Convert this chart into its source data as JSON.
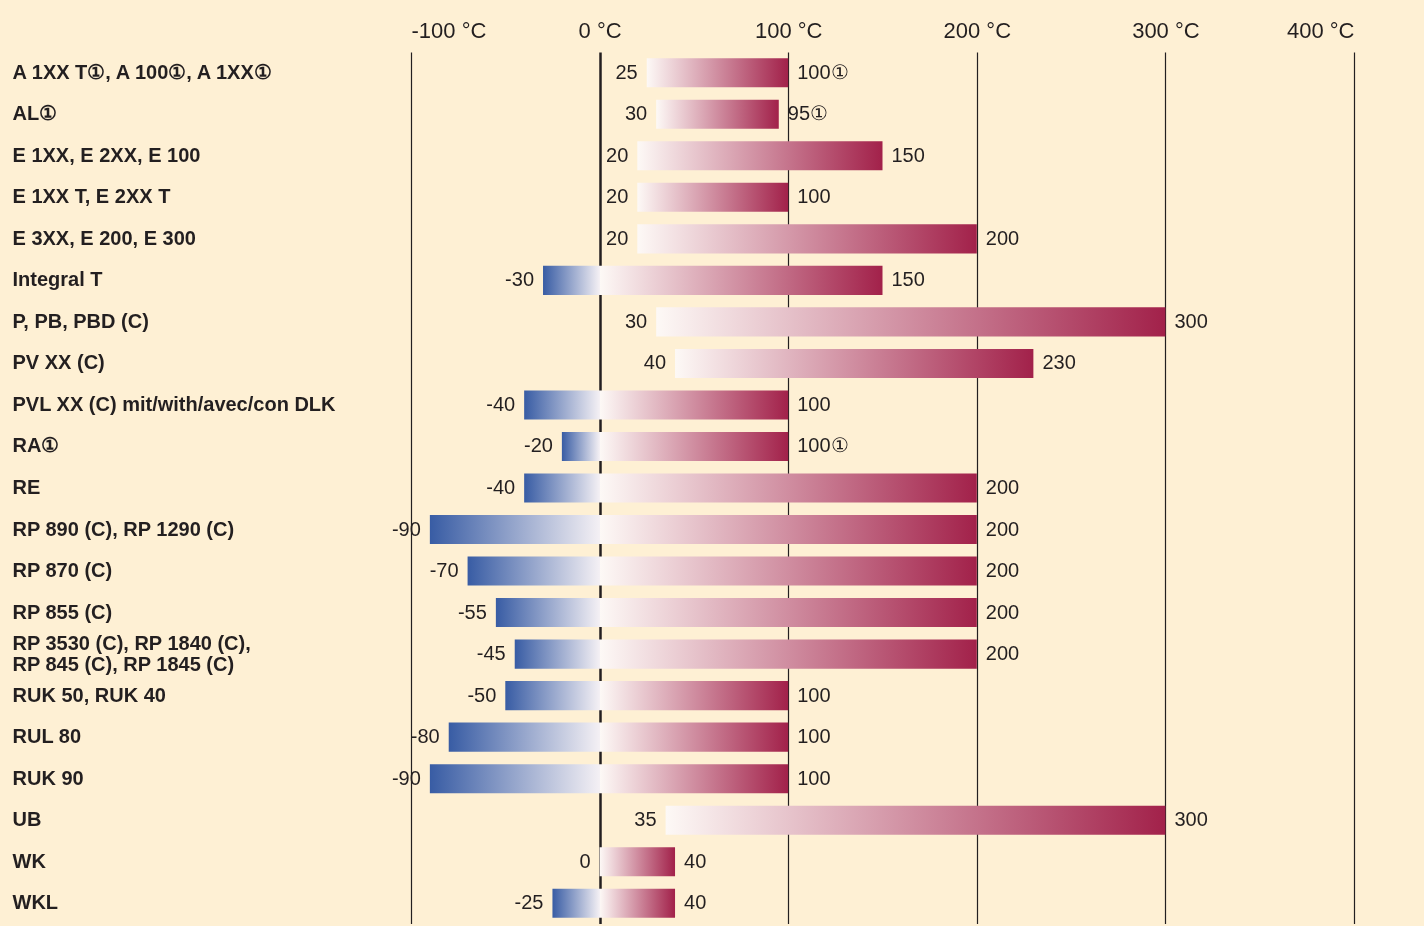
{
  "chart_data": {
    "type": "bar",
    "orientation": "horizontal",
    "grid": "x",
    "categories": [
      "A 1XX T①, A 100①, A 1XX①",
      "AL①",
      "E 1XX, E 2XX, E 100",
      "E 1XX T, E 2XX T",
      "E 3XX, E 200, E 300",
      "Integral T",
      "P, PB, PBD (C)",
      "PV XX (C)",
      "PVL XX (C) mit/with/avec/con DLK",
      "RA①",
      "RE",
      "RP 890 (C), RP 1290 (C)",
      "RP 870 (C)",
      "RP 855 (C)",
      "RP 3530 (C), RP 1840 (C),\nRP 845 (C), RP 1845 (C)",
      "RUK 50, RUK 40",
      "RUL 80",
      "RUK 90",
      "UB",
      "WK",
      "WKL"
    ],
    "series": [
      {
        "color": "#a2214a",
        "base": [
          25,
          30,
          20,
          20,
          20,
          -30,
          30,
          40,
          -40,
          -20,
          -40,
          -90,
          -70,
          -55,
          -45,
          -50,
          -80,
          -90,
          35,
          0,
          -25
        ],
        "values": [
          75,
          65,
          130,
          80,
          180,
          180,
          270,
          190,
          140,
          120,
          240,
          290,
          270,
          255,
          245,
          150,
          180,
          190,
          265,
          40,
          65
        ]
      }
    ],
    "xlim": [
      -100,
      400
    ],
    "xticks": [
      {
        "value": -100,
        "label": "-100 °C"
      },
      {
        "value": 0,
        "label": "0 °C"
      },
      {
        "value": 100,
        "label": "100 °C"
      },
      {
        "value": 200,
        "label": "200 °C"
      },
      {
        "value": 300,
        "label": "300 °C"
      },
      {
        "value": 400,
        "label": "400 °C"
      }
    ],
    "annotations": [
      {
        "text": "25",
        "x": 25,
        "y": "A 1XX T①, A 100①, A 1XX①"
      },
      {
        "text": "100①",
        "x": 100,
        "y": "A 1XX T①, A 100①, A 1XX①"
      },
      {
        "text": "30",
        "x": 30,
        "y": "AL①"
      },
      {
        "text": "95①",
        "x": 95,
        "y": "AL①"
      },
      {
        "text": "20",
        "x": 20,
        "y": "E 1XX, E 2XX, E 100"
      },
      {
        "text": "150",
        "x": 150,
        "y": "E 1XX, E 2XX, E 100"
      },
      {
        "text": "20",
        "x": 20,
        "y": "E 1XX T, E 2XX T"
      },
      {
        "text": "100",
        "x": 100,
        "y": "E 1XX T, E 2XX T"
      },
      {
        "text": "20",
        "x": 20,
        "y": "E 3XX, E 200, E 300"
      },
      {
        "text": "200",
        "x": 200,
        "y": "E 3XX, E 200, E 300"
      },
      {
        "text": "-30",
        "x": -30,
        "y": "Integral T"
      },
      {
        "text": "150",
        "x": 150,
        "y": "Integral T"
      },
      {
        "text": "30",
        "x": 30,
        "y": "P, PB, PBD (C)"
      },
      {
        "text": "300",
        "x": 300,
        "y": "P, PB, PBD (C)"
      },
      {
        "text": "40",
        "x": 40,
        "y": "PV XX (C)"
      },
      {
        "text": "230",
        "x": 230,
        "y": "PV XX (C)"
      },
      {
        "text": "-40",
        "x": -40,
        "y": "PVL XX (C) mit/with/avec/con DLK"
      },
      {
        "text": "100",
        "x": 100,
        "y": "PVL XX (C) mit/with/avec/con DLK"
      },
      {
        "text": "-20",
        "x": -20,
        "y": "RA①"
      },
      {
        "text": "100①",
        "x": 100,
        "y": "RA①"
      },
      {
        "text": "-40",
        "x": -40,
        "y": "RE"
      },
      {
        "text": "200",
        "x": 200,
        "y": "RE"
      },
      {
        "text": "-90",
        "x": -90,
        "y": "RP 890 (C), RP 1290 (C)"
      },
      {
        "text": "200",
        "x": 200,
        "y": "RP 890 (C), RP 1290 (C)"
      },
      {
        "text": "-70",
        "x": -70,
        "y": "RP 870 (C)"
      },
      {
        "text": "200",
        "x": 200,
        "y": "RP 870 (C)"
      },
      {
        "text": "-55",
        "x": -55,
        "y": "RP 855 (C)"
      },
      {
        "text": "200",
        "x": 200,
        "y": "RP 855 (C)"
      },
      {
        "text": "-45",
        "x": -45,
        "y": "RP 3530 (C), RP 1840 (C),\nRP 845 (C), RP 1845 (C)"
      },
      {
        "text": "200",
        "x": 200,
        "y": "RP 3530 (C), RP 1840 (C),\nRP 845 (C), RP 1845 (C)"
      },
      {
        "text": "-50",
        "x": -50,
        "y": "RUK 50, RUK 40"
      },
      {
        "text": "100",
        "x": 100,
        "y": "RUK 50, RUK 40"
      },
      {
        "text": "-80",
        "x": -80,
        "y": "RUL 80"
      },
      {
        "text": "100",
        "x": 100,
        "y": "RUL 80"
      },
      {
        "text": "-90",
        "x": -90,
        "y": "RUK 90"
      },
      {
        "text": "100",
        "x": 100,
        "y": "RUK 90"
      },
      {
        "text": "35",
        "x": 35,
        "y": "UB"
      },
      {
        "text": "300",
        "x": 300,
        "y": "UB"
      },
      {
        "text": "0",
        "x": 0,
        "y": "WK"
      },
      {
        "text": "40",
        "x": 40,
        "y": "WK"
      },
      {
        "text": "-25",
        "x": -25,
        "y": "WKL"
      },
      {
        "text": "40",
        "x": 40,
        "y": "WKL"
      }
    ]
  }
}
